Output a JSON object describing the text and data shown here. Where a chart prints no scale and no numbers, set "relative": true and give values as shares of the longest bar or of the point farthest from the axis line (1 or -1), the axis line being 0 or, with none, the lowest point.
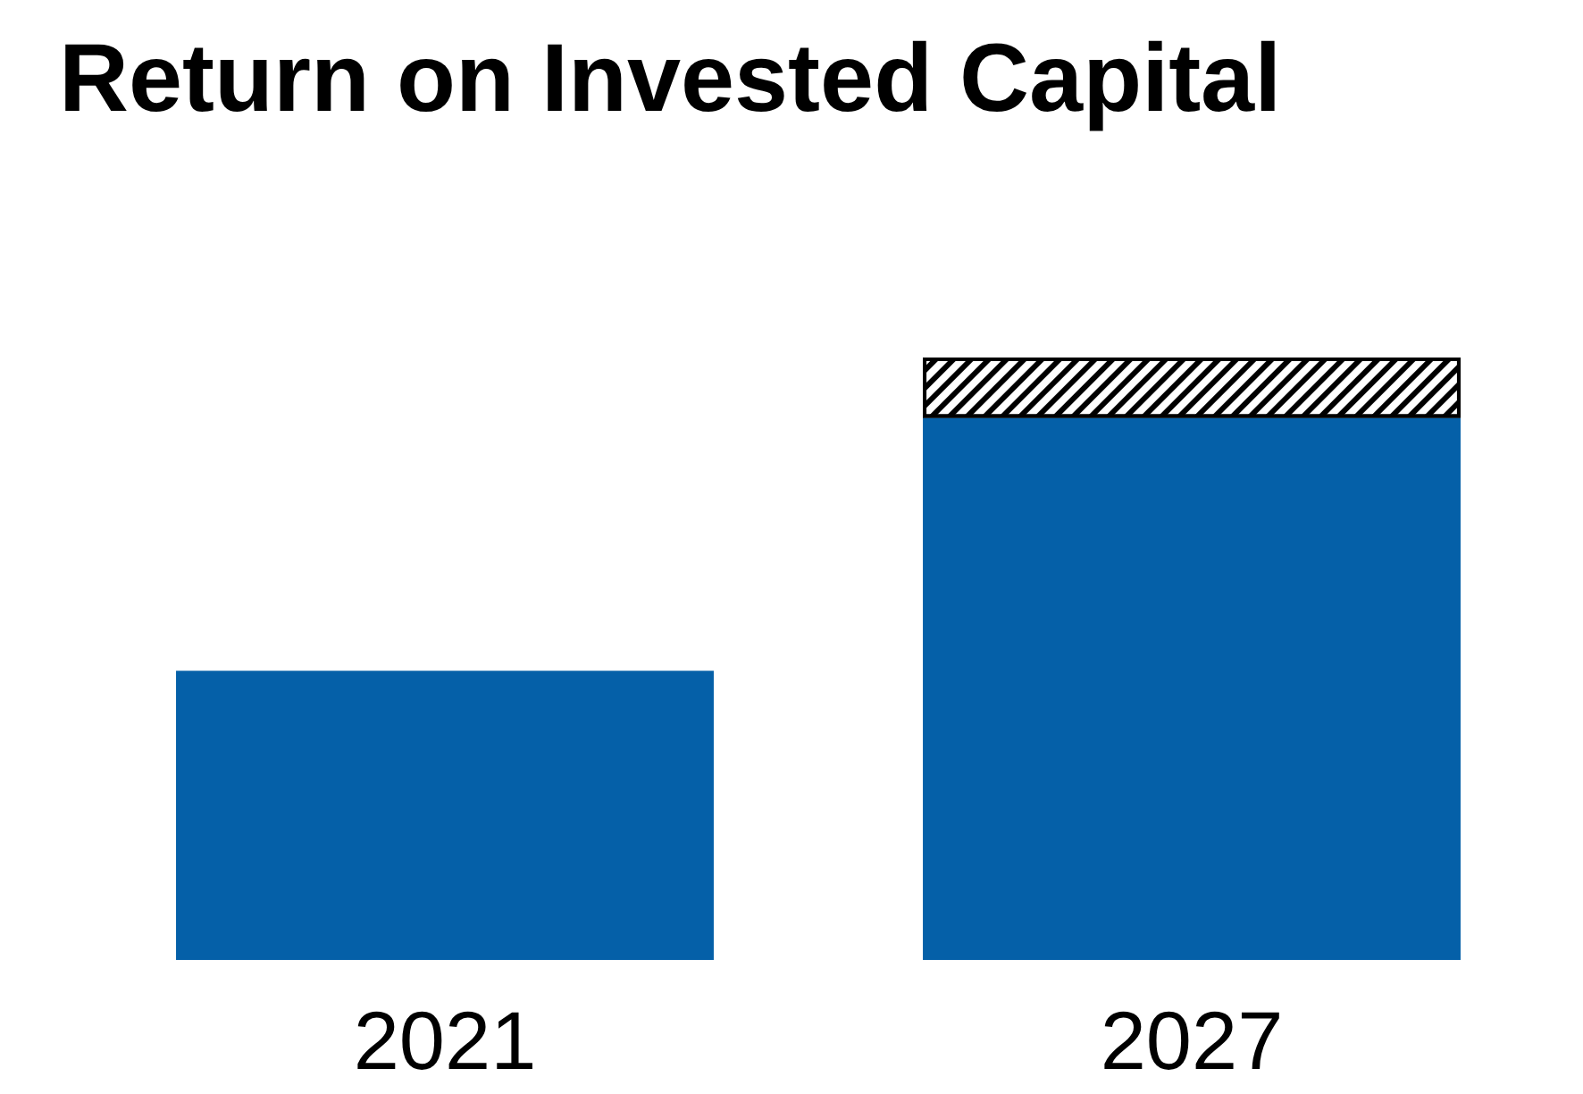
{
  "chart_data": {
    "type": "bar",
    "title": "Return on Invested Capital",
    "categories": [
      "2021",
      "2027"
    ],
    "relative": true,
    "stacked": true,
    "series": [
      {
        "color": "#0560a8",
        "values": [
          0.48,
          0.9
        ]
      },
      {
        "color": "#000000",
        "values": [
          null,
          0.1
        ]
      }
    ]
  }
}
